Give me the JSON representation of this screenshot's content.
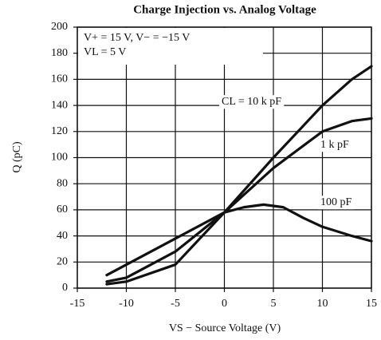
{
  "chart_data": {
    "type": "line",
    "title": "Charge Injection vs. Analog Voltage",
    "xlabel": "VS − Source Voltage (V)",
    "ylabel": "Q (pC)",
    "annotations": [
      "V+ = 15 V, V− = −15 V",
      "VL = 5 V"
    ],
    "xlim": [
      -15,
      15
    ],
    "xticks": [
      -15,
      -10,
      -5,
      0,
      5,
      10,
      15
    ],
    "ylim": [
      0,
      200
    ],
    "yticks": [
      0,
      20,
      40,
      60,
      80,
      100,
      120,
      140,
      160,
      180,
      200
    ],
    "grid": true,
    "series": [
      {
        "name": "CL = 10 k pF",
        "color": "#111111",
        "x": [
          -12,
          -10,
          -5,
          0,
          5,
          10,
          13,
          15
        ],
        "values": [
          3,
          5,
          18,
          58,
          100,
          140,
          160,
          170
        ]
      },
      {
        "name": "1 k pF",
        "color": "#111111",
        "x": [
          -12,
          -10,
          -5,
          0,
          5,
          10,
          13,
          15
        ],
        "values": [
          5,
          8,
          28,
          58,
          92,
          120,
          128,
          130
        ]
      },
      {
        "name": "100 pF",
        "color": "#111111",
        "x": [
          -12,
          -6,
          0,
          2,
          4,
          6,
          8,
          10,
          13,
          15
        ],
        "values": [
          10,
          34,
          58,
          62,
          64,
          62,
          54,
          47,
          40,
          36
        ]
      }
    ]
  }
}
